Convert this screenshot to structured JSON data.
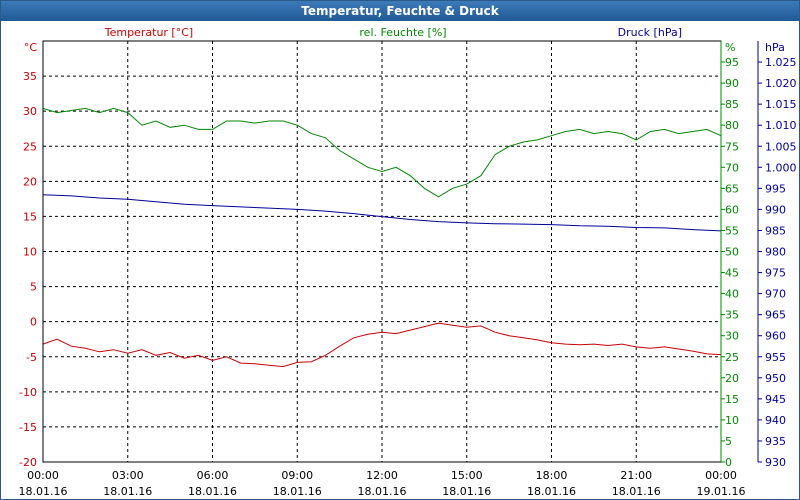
{
  "window": {
    "title": "Temperatur, Feuchte & Druck"
  },
  "colors": {
    "temperature": "#cc0000",
    "humidity": "#008800",
    "pressure": "#000099",
    "grid": "#000000"
  },
  "chart_data": {
    "type": "line",
    "title": "Temperatur, Feuchte & Druck",
    "grid": true,
    "x_ticks": [
      {
        "time": "00:00",
        "date": "18.01.16"
      },
      {
        "time": "03:00",
        "date": "18.01.16"
      },
      {
        "time": "06:00",
        "date": "18.01.16"
      },
      {
        "time": "09:00",
        "date": "18.01.16"
      },
      {
        "time": "12:00",
        "date": "18.01.16"
      },
      {
        "time": "15:00",
        "date": "18.01.16"
      },
      {
        "time": "18:00",
        "date": "18.01.16"
      },
      {
        "time": "21:00",
        "date": "18.01.16"
      },
      {
        "time": "00:00",
        "date": "19.01.16"
      }
    ],
    "x_range_hours": [
      0,
      24
    ],
    "axes": {
      "temperature": {
        "label": "Temperatur [°C]",
        "unit": "°C",
        "range": [
          -20,
          40
        ],
        "ticks": [
          "-20",
          "-15",
          "-10",
          "-5",
          "0",
          "5",
          "10",
          "15",
          "20",
          "25",
          "30",
          "35"
        ]
      },
      "humidity": {
        "label": "rel. Feuchte [%]",
        "unit": "%",
        "range": [
          0,
          100
        ],
        "ticks": [
          "0",
          "5",
          "10",
          "15",
          "20",
          "25",
          "30",
          "35",
          "40",
          "45",
          "50",
          "55",
          "60",
          "65",
          "70",
          "75",
          "80",
          "85",
          "90",
          "95"
        ]
      },
      "pressure": {
        "label": "Druck [hPa]",
        "unit": "hPa",
        "range": [
          930,
          1030
        ],
        "ticks": [
          "930",
          "935",
          "940",
          "945",
          "950",
          "955",
          "960",
          "965",
          "970",
          "975",
          "980",
          "985",
          "990",
          "995",
          "1.000",
          "1.005",
          "1.010",
          "1.015",
          "1.020",
          "1.025"
        ]
      }
    },
    "series": [
      {
        "name": "Temperatur [°C]",
        "axis": "temperature",
        "x": [
          0,
          0.5,
          1,
          1.5,
          2,
          2.5,
          3,
          3.5,
          4,
          4.5,
          5,
          5.5,
          6,
          6.5,
          7,
          7.5,
          8,
          8.5,
          9,
          9.5,
          10,
          10.5,
          11,
          11.5,
          12,
          12.5,
          13,
          13.5,
          14,
          14.5,
          15,
          15.5,
          16,
          16.5,
          17,
          17.5,
          18,
          18.5,
          19,
          19.5,
          20,
          20.5,
          21,
          21.5,
          22,
          22.5,
          23,
          23.5,
          24
        ],
        "values": [
          -3.2,
          -2.5,
          -3.5,
          -3.8,
          -4.3,
          -4.0,
          -4.5,
          -4.0,
          -4.8,
          -4.4,
          -5.2,
          -4.8,
          -5.5,
          -5.0,
          -5.9,
          -6.0,
          -6.2,
          -6.4,
          -5.8,
          -5.7,
          -4.8,
          -3.5,
          -2.3,
          -1.8,
          -1.5,
          -1.7,
          -1.2,
          -0.7,
          -0.2,
          -0.5,
          -0.8,
          -0.6,
          -1.5,
          -2.0,
          -2.3,
          -2.6,
          -3.0,
          -3.2,
          -3.3,
          -3.2,
          -3.4,
          -3.2,
          -3.6,
          -3.8,
          -3.6,
          -3.9,
          -4.2,
          -4.6,
          -4.7
        ]
      },
      {
        "name": "rel. Feuchte [%]",
        "axis": "humidity",
        "x": [
          0,
          0.5,
          1,
          1.5,
          2,
          2.5,
          3,
          3.5,
          4,
          4.5,
          5,
          5.5,
          6,
          6.5,
          7,
          7.5,
          8,
          8.5,
          9,
          9.5,
          10,
          10.5,
          11,
          11.5,
          12,
          12.5,
          13,
          13.5,
          14,
          14.5,
          15,
          15.5,
          16,
          16.5,
          17,
          17.5,
          18,
          18.5,
          19,
          19.5,
          20,
          20.5,
          21,
          21.5,
          22,
          22.5,
          23,
          23.5,
          24
        ],
        "values": [
          84,
          83,
          83.5,
          84,
          83,
          84,
          83,
          80,
          81,
          79.5,
          80,
          79,
          79,
          81,
          81,
          80.5,
          81,
          81,
          80,
          78,
          77,
          74,
          72,
          70,
          69,
          70,
          68,
          65,
          63,
          65,
          66,
          68,
          73,
          75,
          76,
          76.5,
          77.5,
          78.5,
          79,
          78,
          78.5,
          78,
          76.5,
          78.5,
          79,
          78,
          78.5,
          79,
          77.5
        ]
      },
      {
        "name": "Druck [hPa]",
        "axis": "pressure",
        "x": [
          0,
          1,
          2,
          3,
          4,
          5,
          6,
          7,
          8,
          9,
          10,
          11,
          12,
          13,
          14,
          15,
          16,
          17,
          18,
          19,
          20,
          21,
          22,
          23,
          24
        ],
        "values": [
          993.5,
          993.2,
          992.7,
          992.4,
          991.8,
          991.2,
          990.9,
          990.6,
          990.3,
          990,
          989.6,
          989.0,
          988.3,
          987.6,
          987.1,
          986.8,
          986.6,
          986.5,
          986.4,
          986.1,
          986.0,
          985.7,
          985.6,
          985.2,
          984.9
        ]
      }
    ]
  }
}
